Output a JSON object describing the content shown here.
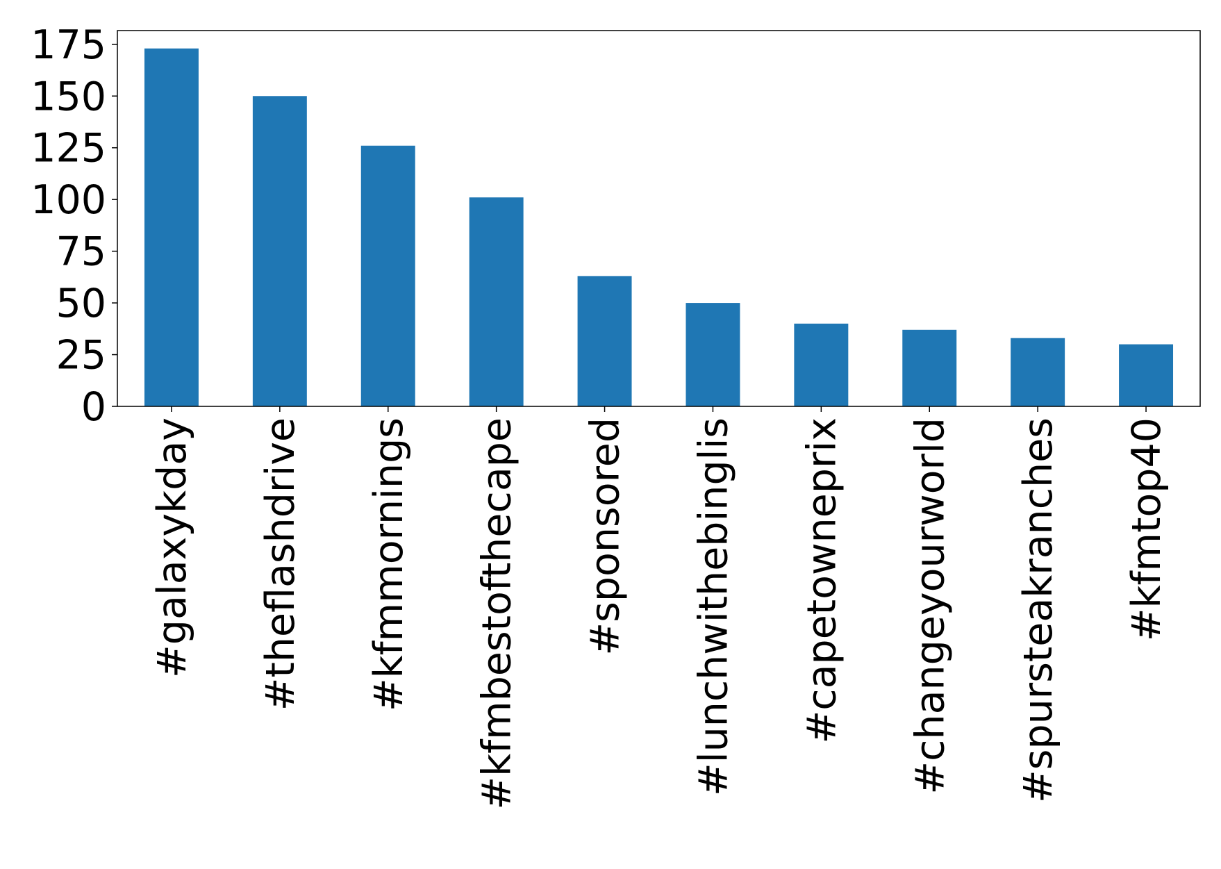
{
  "chart_data": {
    "type": "bar",
    "categories": [
      "#galaxykday",
      "#theflashdrive",
      "#kfmmornings",
      "#kfmbestofthecape",
      "#sponsored",
      "#lunchwithebinglis",
      "#capetowneprix",
      "#changeyourworld",
      "#spursteakranches",
      "#kfmtop40"
    ],
    "values": [
      173,
      150,
      126,
      101,
      63,
      50,
      40,
      37,
      33,
      30
    ],
    "color": "#1f77b4",
    "ylim": [
      0,
      181.65
    ],
    "yticks": [
      0,
      25,
      50,
      75,
      100,
      125,
      150,
      175
    ],
    "grid": false
  }
}
